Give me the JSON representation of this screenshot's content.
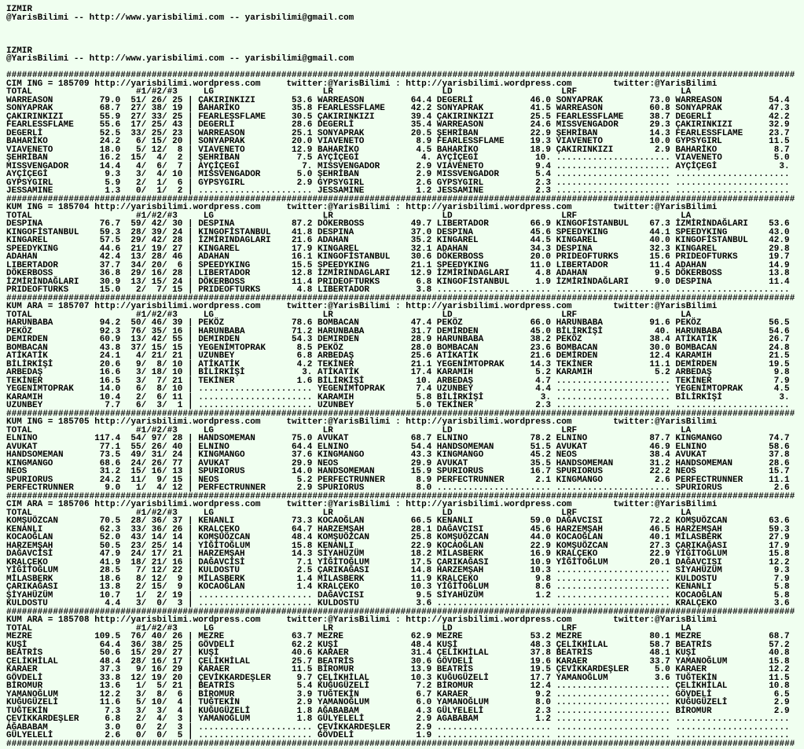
{
  "header": [
    {
      "city": "IZMIR",
      "contact": "@YarisBilimi -- http://www.yarisbilimi.com -- yarisbilimi@gmail.com"
    },
    {
      "city": "IZMIR",
      "contact": "@YarisBilimi -- http://www.yarisbilimi.com -- yarisbilimi@gmail.com"
    }
  ],
  "site": {
    "url": "http://yarisbilimi.wordpress.com",
    "twitter": "twitter:@YarisBilimi",
    "colon": ":"
  },
  "separator": "########################################################################################################################################################",
  "empty_slot": "......................",
  "columns": {
    "total": "TOTAL",
    "places": "#1/#2/#3",
    "bar": "|",
    "picks": [
      "LG",
      "LR",
      "LD",
      "LRF",
      "LA"
    ]
  },
  "races": [
    {
      "title": "CIM ING = 185709",
      "rows": [
        [
          "WARREASON",
          "79.0",
          "51/ 26/ 25",
          "ÇAKIRINKIZI",
          "53.6",
          "WARREASON",
          "64.4",
          "DEGERLİ",
          "46.0",
          "SONYAPRAK",
          "73.0",
          "WARREASON",
          "54.4"
        ],
        [
          "SONYAPRAK",
          "68.7",
          "27/ 38/ 19",
          "BAHARİKO",
          "35.8",
          "FEARLESSFLAME",
          "42.2",
          "SONYAPRAK",
          "41.5",
          "WARREASON",
          "60.8",
          "SONYAPRAK",
          "47.3"
        ],
        [
          "ÇAKIRINKIZI",
          "55.9",
          "27/ 33/ 25",
          "FEARLESSFLAME",
          "30.5",
          "ÇAKIRINKIZI",
          "39.4",
          "ÇAKIRINKIZI",
          "25.5",
          "FEARLESSFLAME",
          "38.7",
          "DEGERLİ",
          "42.2"
        ],
        [
          "FEARLESSFLAME",
          "55.6",
          "17/ 25/ 43",
          "DEGERLİ",
          "28.6",
          "DEGERLİ",
          "35.4",
          "WARREASON",
          "24.6",
          "MISSVENGADOR",
          "29.3",
          "ÇAKIRINKIZI",
          "32.9"
        ],
        [
          "DEGERLİ",
          "52.5",
          "33/ 25/ 23",
          "WARREASON",
          "25.1",
          "SONYAPRAK",
          "20.5",
          "ŞEHRİBAN",
          "22.9",
          "ŞEHRİBAN",
          "14.3",
          "FEARLESSFLAME",
          "23.7"
        ],
        [
          "BAHARİKO",
          "24.2",
          "6/ 15/ 20",
          "SONYAPRAK",
          "20.0",
          "VIAVENETO",
          "8.9",
          "FEARLESSFLAME",
          "19.3",
          "VIAVENETO",
          "10.0",
          "GYPSYGIRL",
          "11.5"
        ],
        [
          "VIAVENETO",
          "18.0",
          "5/ 12/  8",
          "VIAVENETO",
          "12.9",
          "BAHARİKO",
          "4.5",
          "BAHARİKO",
          "18.9",
          "ÇAKIRINKIZI",
          "2.9",
          "BAHARİKO",
          "8.7"
        ],
        [
          "ŞEHRİBAN",
          "16.2",
          "15/  4/  2",
          "ŞEHRİBAN",
          "7.5",
          "AYÇİÇEGİ",
          "4.",
          "AYÇİÇEGİ",
          "10.",
          "",
          "",
          "VIAVENETO",
          "5.0"
        ],
        [
          "MISSVENGADOR",
          "14.4",
          "4/  6/  7",
          "AYÇİÇEGİ",
          "7.",
          "MISSVENGADOR",
          "2.9",
          "VIAVENETO",
          "9.4",
          "",
          "",
          "AYÇİÇEGİ",
          "3."
        ],
        [
          "AYÇİÇEGİ",
          "9.3",
          "3/  4/ 10",
          "MISSVENGADOR",
          "5.0",
          "ŞEHRİBAN",
          "2.9",
          "MISSVENGADOR",
          "5.4",
          "",
          "",
          "",
          ""
        ],
        [
          "GYPSYGIRL",
          "5.9",
          "2/  1/  6",
          "GYPSYGIRL",
          "2.9",
          "GYPSYGIRL",
          "2.6",
          "GYPSYGIRL",
          "2.3",
          "",
          "",
          "",
          ""
        ],
        [
          "JESSAMINE",
          "1.3",
          "0/  1/  2",
          "",
          "",
          "JESSAMINE",
          "1.2",
          "JESSAMINE",
          "2.3",
          "",
          "",
          "",
          ""
        ]
      ]
    },
    {
      "title": "KUM ING = 185704",
      "rows": [
        [
          "DESPINA",
          "76.7",
          "59/ 42/ 30",
          "DESPINA",
          "87.2",
          "DÖKERBOSS",
          "49.7",
          "LIBERTADOR",
          "66.9",
          "KINGOFİSTANBUL",
          "67.3",
          "İZMİRİNDAĞLARI",
          "53.6"
        ],
        [
          "KINGOFİSTANBUL",
          "59.3",
          "28/ 39/ 24",
          "KINGOFİSTANBUL",
          "41.8",
          "DESPINA",
          "37.0",
          "DESPINA",
          "45.6",
          "SPEEDYKING",
          "44.1",
          "SPEEDYKING",
          "43.0"
        ],
        [
          "KINGAREL",
          "57.5",
          "29/ 42/ 28",
          "İZMİRINDAGLARI",
          "21.6",
          "ADAHAN",
          "35.2",
          "KINGAREL",
          "44.5",
          "KINGAREL",
          "40.0",
          "KINGOFİSTANBUL",
          "42.9"
        ],
        [
          "SPEEDYKING",
          "44.6",
          "21/ 19/ 27",
          "KINGAREL",
          "17.9",
          "KINGAREL",
          "32.1",
          "ADAHAN",
          "34.3",
          "DESPINA",
          "32.3",
          "KINGAREL",
          "29.8"
        ],
        [
          "ADAHAN",
          "42.4",
          "13/ 28/ 46",
          "ADAHAN",
          "16.1",
          "KINGOFİSTANBUL",
          "30.6",
          "DÖKERBOSS",
          "20.0",
          "PRIDEOFTURKS",
          "15.6",
          "PRIDEOFTURKS",
          "19.7"
        ],
        [
          "LIBERTADOR",
          "37.7",
          "34/ 20/  6",
          "SPEEDYKING",
          "15.5",
          "SPEEDYKING",
          "21.1",
          "SPEEDYKING",
          "11.0",
          "LIBERTADOR",
          "11.4",
          "ADAHAN",
          "14.9"
        ],
        [
          "DÖKERBOSS",
          "36.8",
          "29/ 16/ 28",
          "LIBERTADOR",
          "12.8",
          "İZMİRINDAGLARI",
          "12.9",
          "İZMİRİNDAGLARI",
          "4.8",
          "ADAHAN",
          "9.5",
          "DÖKERBOSS",
          "13.8"
        ],
        [
          "İZMİRİNDAĞLARI",
          "30.9",
          "13/ 15/ 24",
          "DÖKERBOSS",
          "11.4",
          "PRIDEOFTURKS",
          "6.8",
          "KINGOFİSTANBUL",
          "1.9",
          "İZMİRİNDAĞLARI",
          "9.0",
          "DESPINA",
          "11.4"
        ],
        [
          "PRIDEOFTURKS",
          "15.0",
          "2/  7/ 15",
          "PRIDEOFTURKS",
          "4.8",
          "LIBERTADOR",
          "3.8",
          "",
          "",
          "",
          "",
          "",
          ""
        ]
      ]
    },
    {
      "title": "KUM ARA = 185707",
      "rows": [
        [
          "HARUNBABA",
          "94.2",
          "50/ 46/ 39",
          "PEKÖZ",
          "78.6",
          "BOMBACAN",
          "47.4",
          "PEKÖZ",
          "66.0",
          "HARUNBABA",
          "91.6",
          "PEKÖZ",
          "56.5"
        ],
        [
          "PEKÖZ",
          "92.3",
          "76/ 35/ 16",
          "HARUNBABA",
          "71.2",
          "HARUNBABA",
          "31.7",
          "DEMİRDEN",
          "45.0",
          "BİLİRKİŞİ",
          "40.",
          "HARUNBABA",
          "54.6"
        ],
        [
          "DEMIRDEN",
          "60.9",
          "13/ 42/ 55",
          "DEMIRDEN",
          "54.3",
          "DEMIRDEN",
          "28.9",
          "HARUNBABA",
          "38.2",
          "PEKÖZ",
          "38.4",
          "ATİKATİK",
          "26.7"
        ],
        [
          "BOMBACAN",
          "43.8",
          "37/ 15/ 15",
          "YEGENİMTOPRAK",
          "8.5",
          "PEKÖZ",
          "28.0",
          "BOMBACAN",
          "23.6",
          "BOMBACAN",
          "30.0",
          "BOMBACAN",
          "24.8"
        ],
        [
          "ATİKATİK",
          "24.1",
          "4/ 21/ 21",
          "UZUNBEY",
          "6.8",
          "ARBEDAŞ",
          "25.6",
          "ATİKATİK",
          "21.6",
          "DEMİRDEN",
          "12.4",
          "KARAMIH",
          "21.5"
        ],
        [
          "BİLİRKİŞİ",
          "20.6",
          "9/  8/ 10",
          "ATİKATİK",
          "4.2",
          "TEKİNER",
          "21.1",
          "YEGENİMTOPRAK",
          "14.3",
          "TEKİNER",
          "11.1",
          "DEMİRDEN",
          "19.5"
        ],
        [
          "ARBEDAŞ",
          "16.6",
          "3/ 18/ 10",
          "BİLİRKİŞİ",
          "3.",
          "ATİKATİK",
          "17.4",
          "KARAMIH",
          "5.2",
          "KARAMIH",
          "5.2",
          "ARBEDAŞ",
          "9.8"
        ],
        [
          "TEKİNER",
          "16.5",
          "3/  7/ 21",
          "TEKİNER",
          "1.6",
          "BİLİRKİŞİ",
          "10.",
          "ARBEDAŞ",
          "4.7",
          "",
          "",
          "TEKİNER",
          "7.9"
        ],
        [
          "YEGENİMTOPRAK",
          "14.0",
          "6/  8/ 10",
          "",
          "",
          "YEGENİMTOPRAK",
          "7.4",
          "UZUNBEY",
          "4.4",
          "",
          "",
          "YEGENİMTOPRAK",
          "4.5"
        ],
        [
          "KARAMIH",
          "10.4",
          "2/  6/ 11",
          "",
          "",
          "KARAMIH",
          "5.8",
          "BİLİRKİŞİ",
          "3.",
          "",
          "",
          "BİLİRKİŞİ",
          "3."
        ],
        [
          "UZUNBEY",
          "7.7",
          "6/  3/  1",
          "",
          "",
          "UZUNBEY",
          "5.0",
          "TEKİNER",
          "2.3",
          "",
          "",
          "",
          ""
        ]
      ]
    },
    {
      "title": "KUM ING = 185705",
      "rows": [
        [
          "ELNINO",
          "117.4",
          "54/ 97/ 28",
          "HANDSOMEMAN",
          "75.0",
          "AVUKAT",
          "68.7",
          "ELNINO",
          "78.2",
          "ELNINO",
          "87.7",
          "KINGMANGO",
          "74.7"
        ],
        [
          "AVUKAT",
          "77.1",
          "55/ 26/ 40",
          "ELNINO",
          "64.4",
          "ELNINO",
          "54.4",
          "HANDSOMEMAN",
          "51.5",
          "AVUKAT",
          "46.9",
          "ELNINO",
          "58.6"
        ],
        [
          "HANDSOMEMAN",
          "73.5",
          "49/ 31/ 24",
          "KINGMANGO",
          "37.6",
          "KINGMANGO",
          "43.3",
          "KINGMANGO",
          "45.2",
          "NEOS",
          "38.4",
          "AVUKAT",
          "37.8"
        ],
        [
          "KINGMANGO",
          "68.6",
          "24/ 26/ 77",
          "AVUKAT",
          "29.9",
          "NEOS",
          "29.9",
          "AVUKAT",
          "35.5",
          "HANDSOMEMAN",
          "31.2",
          "HANDSOMEMAN",
          "28.6"
        ],
        [
          "NEOS",
          "31.2",
          "15/ 16/ 13",
          "SPURIORUS",
          "14.0",
          "HANDSOMEMAN",
          "15.9",
          "SPURIORUS",
          "16.7",
          "SPURIORUS",
          "22.2",
          "NEOS",
          "15.7"
        ],
        [
          "SPURIORUS",
          "24.2",
          "11/  9/ 15",
          "NEOS",
          "5.2",
          "PERFECTRUNNER",
          "8.9",
          "PERFECTRUNNER",
          "2.1",
          "KINGMANGO",
          "2.6",
          "PERFECTRUNNER",
          "11.1"
        ],
        [
          "PERFECTRUNNER",
          "9.0",
          "1/  4/ 12",
          "PERFECTRUNNER",
          "2.9",
          "SPURIORUS",
          "8.0",
          "",
          "",
          "",
          "",
          "SPURIORUS",
          "2.6"
        ]
      ]
    },
    {
      "title": "CIM ARA = 185706",
      "rows": [
        [
          "KOMŞUÖZCAN",
          "70.5",
          "28/ 36/ 37",
          "KENANLI",
          "73.3",
          "KOCAOĞLAN",
          "66.5",
          "KENANLI",
          "59.0",
          "DAĞAVCISI",
          "72.2",
          "KOMŞUÖZCAN",
          "63.6"
        ],
        [
          "KENANLI",
          "62.3",
          "33/ 36/ 26",
          "KRALÇEKO",
          "64.7",
          "HARZEMŞAH",
          "28.1",
          "DAĞAVCISI",
          "45.6",
          "HARZEMŞAH",
          "46.5",
          "HARZEMŞAH",
          "59.3"
        ],
        [
          "KOCAOĞLAN",
          "52.0",
          "43/ 14/ 14",
          "KOMŞUÖZCAN",
          "48.4",
          "KOMŞUÖZCAN",
          "25.8",
          "KOMŞUÖZCAN",
          "44.0",
          "KOCAOĞLAN",
          "40.1",
          "MİLASBERK",
          "27.9"
        ],
        [
          "HARZEMŞAH",
          "50.5",
          "23/ 25/ 14",
          "YİĞİTOĞLUM",
          "15.8",
          "KENANLI",
          "22.9",
          "KOCAOĞLAN",
          "22.9",
          "KOMŞUÖZCAN",
          "27.3",
          "ÇARIKAĞASI",
          "17.9"
        ],
        [
          "DAĞAVCİSİ",
          "47.9",
          "24/ 17/ 21",
          "HARZEMŞAH",
          "14.3",
          "SİYAHÜZÜM",
          "18.2",
          "MİLASBERK",
          "16.9",
          "KRALÇEKO",
          "22.9",
          "YİĞİTOĞLUM",
          "15.8"
        ],
        [
          "KRALÇEKO",
          "41.9",
          "18/ 21/ 16",
          "DAĞAVCİSİ",
          "7.1",
          "YİĞİTOĞLUM",
          "17.5",
          "ÇARIKAĞASI",
          "10.9",
          "YİĞİTOĞLUM",
          "20.1",
          "DAĞAVCISI",
          "12.2"
        ],
        [
          "YİĞİTOĞLUM",
          "28.5",
          "7/ 12/ 22",
          "KULDOSTU",
          "2.5",
          "ÇARIKAĞASI",
          "14.8",
          "HARZEMŞAH",
          "10.3",
          "",
          "",
          "SİYAHÜZÜM",
          "9.3"
        ],
        [
          "MİLASBERK",
          "18.6",
          "8/ 12/  9",
          "MİLASBERK",
          "1.4",
          "MİLASBERK",
          "11.9",
          "KRALÇEKO",
          "9.8",
          "",
          "",
          "KULDOSTU",
          "7.9"
        ],
        [
          "ÇARIKAĞASI",
          "13.8",
          "2/ 15/  9",
          "KOCAOĞLAN",
          "1.4",
          "KRALÇEKO",
          "10.3",
          "YİĞİTOĞLUM",
          "8.6",
          "",
          "",
          "KENANLI",
          "5.8"
        ],
        [
          "ŞİYAHÜZÜM",
          "10.7",
          "1/  2/ 19",
          "",
          "",
          "DAĞAVCISI",
          "9.5",
          "SİYAHÜZÜM",
          "1.2",
          "",
          "",
          "KOCAOĞLAN",
          "5.8"
        ],
        [
          "KULDOSTU",
          "4.4",
          "3/  0/  3",
          "",
          "",
          "KULDOSTU",
          "3.6",
          "",
          "",
          "",
          "",
          "KRALÇEKO",
          "3.6"
        ]
      ]
    },
    {
      "title": "KUM ARA = 185708",
      "rows": [
        [
          "MEZRE",
          "109.5",
          "76/ 40/ 26",
          "MEZRE",
          "63.7",
          "MEZRE",
          "62.9",
          "MEZRE",
          "53.2",
          "MEZRE",
          "80.1",
          "MEZRE",
          "68.7"
        ],
        [
          "KUŞİ",
          "64.4",
          "36/ 38/ 25",
          "GÖVDELİ",
          "62.2",
          "KUŞİ",
          "48.4",
          "KUŞİ",
          "48.3",
          "ÇELİKHİLAL",
          "58.7",
          "BEATRİS",
          "57.2"
        ],
        [
          "BEATRİS",
          "50.6",
          "15/ 29/ 27",
          "KUŞİ",
          "40.6",
          "KARAER",
          "31.4",
          "ÇELİKHİLAL",
          "37.8",
          "BEATRİS",
          "48.1",
          "KUŞİ",
          "40.8"
        ],
        [
          "ÇELİKHİLAL",
          "48.4",
          "28/ 16/ 17",
          "ÇELİKHİLAL",
          "25.7",
          "BEATRİS",
          "30.6",
          "GÖVDELİ",
          "19.6",
          "KARAER",
          "33.7",
          "YAMANOĞLUM",
          "15.8"
        ],
        [
          "KARAER",
          "37.3",
          "9/ 16/ 29",
          "KARAER",
          "11.5",
          "BİROMUR",
          "13.9",
          "BEATRİS",
          "19.5",
          "ÇEVİKKARDEŞLER",
          "5.0",
          "KARAER",
          "12.2"
        ],
        [
          "GÖVDELİ",
          "33.8",
          "12/ 19/ 20",
          "ÇEVİKKARDEŞLER",
          "9.7",
          "ÇELİKHİLAL",
          "10.3",
          "KUĞUGÜZELİ",
          "17.7",
          "YAMANOĞLUM",
          "3.6",
          "TUĞTEKİN",
          "11.5"
        ],
        [
          "BİROMUR",
          "13.6",
          "1/  5/ 21",
          "BEATRİS",
          "5.4",
          "KUĞUGÜZELİ",
          "7.2",
          "BİROMUR",
          "12.4",
          "",
          "",
          "ÇELİKHİLAL",
          "10.8"
        ],
        [
          "YAMANOĞLUM",
          "12.2",
          "3/  8/  6",
          "BİROMUR",
          "3.9",
          "TUĞTEKİN",
          "6.7",
          "KARAER",
          "9.2",
          "",
          "",
          "GÖVDELİ",
          "6.5"
        ],
        [
          "KUĞUGÜZELİ",
          "11.6",
          "5/ 10/  4",
          "TUĞTEKİN",
          "2.9",
          "YAMANOĞLUM",
          "6.0",
          "YAMANOĞLUM",
          "8.0",
          "",
          "",
          "KUĞUGÜZELİ",
          "2.9"
        ],
        [
          "TUĞTEKİN",
          "7.3",
          "3/  3/  4",
          "KUĞUGÜZELİ",
          "1.8",
          "AĞABABAM",
          "4.3",
          "GÜLYELELİ",
          "2.3",
          "",
          "",
          "BİROMUR",
          "2.9"
        ],
        [
          "ÇEVİKKARDEŞLER",
          "6.8",
          "2/  4/  3",
          "YAMANOĞLUM",
          "1.8",
          "GÜLYELELİ",
          "2.9",
          "AGABABAM",
          "1.2",
          "",
          "",
          "",
          ""
        ],
        [
          "AĞABABAM",
          "3.0",
          "0/  2/  3",
          "",
          "",
          "ÇEVİKKARDEŞLER",
          "2.9",
          "",
          "",
          "",
          "",
          "",
          ""
        ],
        [
          "GÜLYELELİ",
          "2.6",
          "0/  0/  5",
          "",
          "",
          "GÖVDELİ",
          "1.9",
          "",
          "",
          "",
          "",
          "",
          ""
        ]
      ]
    }
  ]
}
